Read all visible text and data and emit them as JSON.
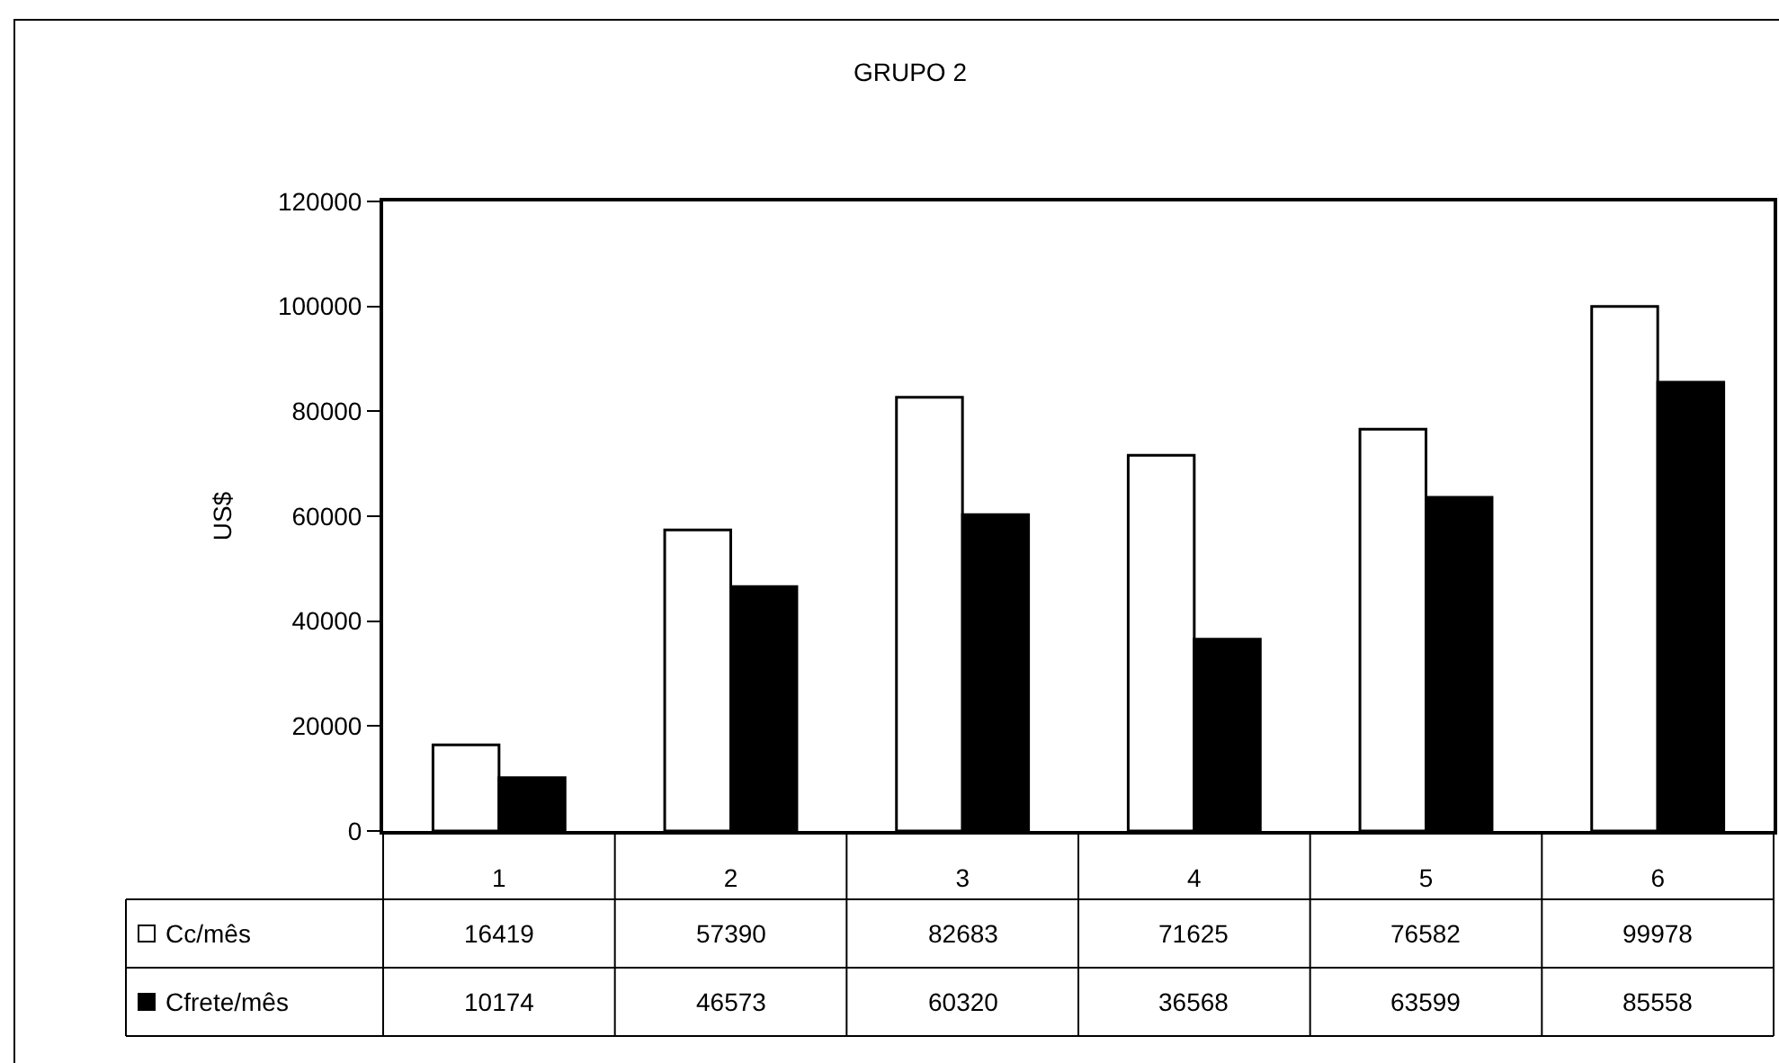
{
  "chart_data": {
    "type": "bar",
    "title": "GRUPO 2",
    "ylabel": "US$",
    "categories": [
      "1",
      "2",
      "3",
      "4",
      "5",
      "6"
    ],
    "series": [
      {
        "name": "Cc/mês",
        "color": "#ffffff",
        "values": [
          16419,
          57390,
          82683,
          71625,
          76582,
          99978
        ]
      },
      {
        "name": "Cfrete/mês",
        "color": "#000000",
        "values": [
          10174,
          46573,
          60320,
          36568,
          63599,
          85558
        ]
      }
    ],
    "ylim": [
      0,
      120000
    ],
    "yticks": [
      0,
      20000,
      40000,
      60000,
      80000,
      100000,
      120000
    ],
    "grid": false,
    "legend": "bottom left",
    "data_labels": true
  }
}
